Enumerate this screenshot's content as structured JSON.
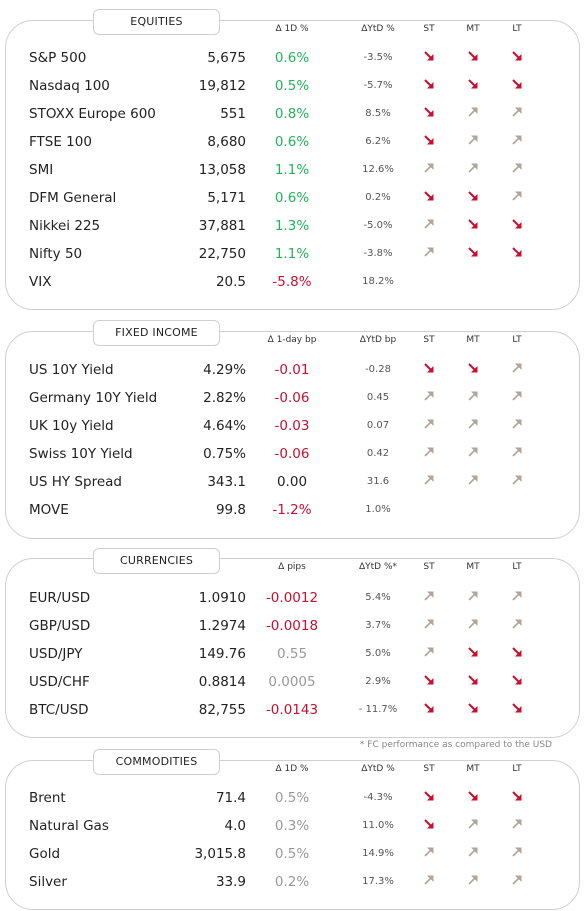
{
  "colors": {
    "up": "#22b35a",
    "down": "#c8102e",
    "neutral": "#999999",
    "arrow_down": "#c8102e",
    "arrow_up": "#b0a49a"
  },
  "sections": [
    {
      "title": "EQUITIES",
      "headers": {
        "change": "Δ 1D %",
        "ytd": "ΔYtD %",
        "st": "ST",
        "mt": "MT",
        "lt": "LT"
      },
      "rows": [
        {
          "name": "S&P 500",
          "value": "5,675",
          "change": "0.6%",
          "change_tone": "up",
          "ytd": "-3.5%",
          "st": "down",
          "mt": "down",
          "lt": "down"
        },
        {
          "name": "Nasdaq 100",
          "value": "19,812",
          "change": "0.5%",
          "change_tone": "up",
          "ytd": "-5.7%",
          "st": "down",
          "mt": "down",
          "lt": "down"
        },
        {
          "name": "STOXX Europe 600",
          "value": "551",
          "change": "0.8%",
          "change_tone": "up",
          "ytd": "8.5%",
          "st": "down",
          "mt": "up",
          "lt": "up"
        },
        {
          "name": "FTSE 100",
          "value": "8,680",
          "change": "0.6%",
          "change_tone": "up",
          "ytd": "6.2%",
          "st": "down",
          "mt": "up",
          "lt": "up"
        },
        {
          "name": "SMI",
          "value": "13,058",
          "change": "1.1%",
          "change_tone": "up",
          "ytd": "12.6%",
          "st": "up",
          "mt": "up",
          "lt": "up"
        },
        {
          "name": "DFM General",
          "value": "5,171",
          "change": "0.6%",
          "change_tone": "up",
          "ytd": "0.2%",
          "st": "down",
          "mt": "down",
          "lt": "up"
        },
        {
          "name": "Nikkei 225",
          "value": "37,881",
          "change": "1.3%",
          "change_tone": "up",
          "ytd": "-5.0%",
          "st": "up",
          "mt": "down",
          "lt": "down"
        },
        {
          "name": "Nifty  50",
          "value": "22,750",
          "change": "1.1%",
          "change_tone": "up",
          "ytd": "-3.8%",
          "st": "up",
          "mt": "down",
          "lt": "down"
        },
        {
          "name": "VIX",
          "value": "20.5",
          "change": "-5.8%",
          "change_tone": "down",
          "ytd": "18.2%",
          "st": "",
          "mt": "",
          "lt": ""
        }
      ]
    },
    {
      "title": "FIXED INCOME",
      "headers": {
        "change": "Δ 1-day bp",
        "ytd": "ΔYtD bp",
        "st": "ST",
        "mt": "MT",
        "lt": "LT"
      },
      "rows": [
        {
          "name": "US 10Y Yield",
          "value": "4.29%",
          "change": "-0.01",
          "change_tone": "down",
          "ytd": "-0.28",
          "st": "down",
          "mt": "down",
          "lt": "up"
        },
        {
          "name": "Germany 10Y Yield",
          "value": "2.82%",
          "change": "-0.06",
          "change_tone": "down",
          "ytd": "0.45",
          "st": "up",
          "mt": "up",
          "lt": "up"
        },
        {
          "name": "UK 10y Yield",
          "value": "4.64%",
          "change": "-0.03",
          "change_tone": "down",
          "ytd": "0.07",
          "st": "up",
          "mt": "up",
          "lt": "up"
        },
        {
          "name": "Swiss 10Y Yield",
          "value": "0.75%",
          "change": "-0.06",
          "change_tone": "down",
          "ytd": "0.42",
          "st": "up",
          "mt": "up",
          "lt": "up"
        },
        {
          "name": "US HY Spread",
          "value": "343.1",
          "change": "0.00",
          "change_tone": "flat",
          "ytd": "31.6",
          "st": "up",
          "mt": "up",
          "lt": "up"
        },
        {
          "name": "MOVE",
          "value": "99.8",
          "change": "-1.2%",
          "change_tone": "down",
          "ytd": "1.0%",
          "st": "",
          "mt": "",
          "lt": ""
        }
      ]
    },
    {
      "title": "CURRENCIES",
      "headers": {
        "change": "Δ pips",
        "ytd": "ΔYtD %*",
        "st": "ST",
        "mt": "MT",
        "lt": "LT"
      },
      "rows": [
        {
          "name": "EUR/USD",
          "value": "1.0910",
          "change": "-0.0012",
          "change_tone": "down",
          "ytd": "5.4%",
          "st": "up",
          "mt": "up",
          "lt": "up"
        },
        {
          "name": "GBP/USD",
          "value": "1.2974",
          "change": "-0.0018",
          "change_tone": "down",
          "ytd": "3.7%",
          "st": "up",
          "mt": "up",
          "lt": "up"
        },
        {
          "name": "USD/JPY",
          "value": "149.76",
          "change": "0.55",
          "change_tone": "neutral",
          "ytd": "5.0%",
          "st": "up",
          "mt": "down",
          "lt": "down"
        },
        {
          "name": "USD/CHF",
          "value": "0.8814",
          "change": "0.0005",
          "change_tone": "neutral",
          "ytd": "2.9%",
          "st": "down",
          "mt": "down",
          "lt": "down"
        },
        {
          "name": "BTC/USD",
          "value": "82,755",
          "change": "-0.0143",
          "change_tone": "down",
          "ytd": "- 11.7%",
          "st": "down",
          "mt": "down",
          "lt": "down"
        }
      ]
    },
    {
      "title": "COMMODITIES",
      "headers": {
        "change": "Δ 1D %",
        "ytd": "ΔYtD %",
        "st": "ST",
        "mt": "MT",
        "lt": "LT"
      },
      "rows": [
        {
          "name": "Brent",
          "value": "71.4",
          "change": "0.5%",
          "change_tone": "neutral",
          "ytd": "-4.3%",
          "st": "down",
          "mt": "down",
          "lt": "down"
        },
        {
          "name": "Natural Gas",
          "value": "4.0",
          "change": "0.3%",
          "change_tone": "neutral",
          "ytd": "11.0%",
          "st": "down",
          "mt": "up",
          "lt": "up"
        },
        {
          "name": "Gold",
          "value": "3,015.8",
          "change": "0.5%",
          "change_tone": "neutral",
          "ytd": "14.9%",
          "st": "up",
          "mt": "up",
          "lt": "up"
        },
        {
          "name": "Silver",
          "value": "33.9",
          "change": "0.2%",
          "change_tone": "neutral",
          "ytd": "17.3%",
          "st": "up",
          "mt": "up",
          "lt": "up"
        }
      ]
    }
  ],
  "footnote": "* FC performance as compared to the USD"
}
